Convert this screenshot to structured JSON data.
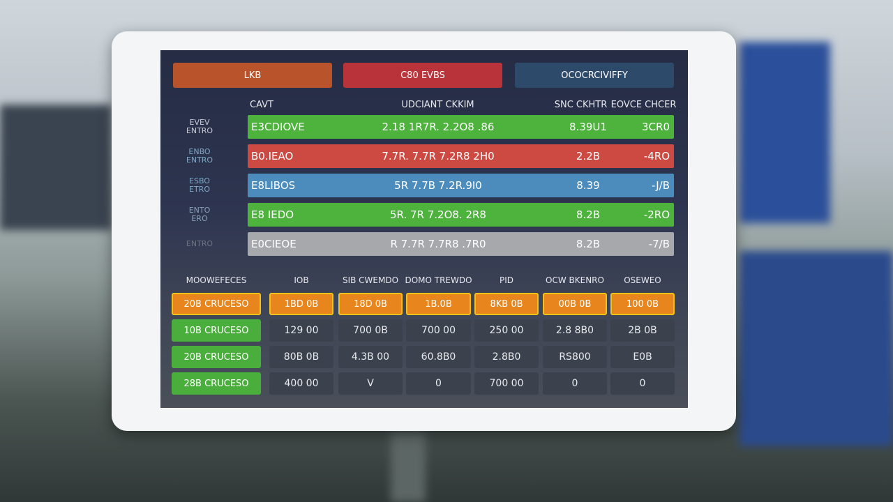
{
  "tabs": [
    "LKB",
    "C80 EVBS",
    "OCOCRCIVIFFY"
  ],
  "upper_table": {
    "headers": [
      "CAVT",
      "UDCIANT CKKIM",
      "SNC CKHTR",
      "EOVCE CHCER"
    ],
    "rows": [
      {
        "label": "EVEV ENTRO",
        "name": "E3CDIOVE",
        "detail": "2.18 1R7R. 2.2O8 .86",
        "value": "8.39U1",
        "change": "3CR0"
      },
      {
        "label": "ENBO ENTRO",
        "name": "B0.IEAO",
        "detail": "7.7R. 7.7R 7.2R8 2H0",
        "value": "2.2B",
        "change": "-4RO"
      },
      {
        "label": "ESBO ETRO",
        "name": "E8LIBOS",
        "detail": "5R 7.7B 7.2R.9I0",
        "value": "8.39",
        "change": "-J/B"
      },
      {
        "label": "ENTO ERO",
        "name": "E8 IEDO",
        "detail": "5R. 7R 7.2O8. 2R8",
        "value": "8.2B",
        "change": "-2RO"
      },
      {
        "label": "ENTRO",
        "name": "E0CIEOE",
        "detail": "R 7.7R 7.7R8 .7R0",
        "value": "8.2B",
        "change": "-7/B"
      }
    ]
  },
  "lower_table": {
    "headers": [
      "MOOWEFECES",
      "IOB",
      "SIB CWEMDO",
      "DOMO TREWDO",
      "PID",
      "OCW BKENRO",
      "OSEWEO"
    ],
    "rows": [
      [
        "20B CRUCESO",
        "1BD 0B",
        "18D 0B",
        "1B.0B",
        "8KB 0B",
        "00B 0B",
        "100 0B"
      ],
      [
        "10B CRUCESO",
        "129 00",
        "700 0B",
        "700 00",
        "250 00",
        "2.8 8B0",
        "2B 0B"
      ],
      [
        "20B CRUCESO",
        "80B 0B",
        "4.3B 00",
        "60.8B0",
        "2.8B0",
        "RS800",
        "E0B"
      ],
      [
        "28B CRUCESO",
        "400 00",
        "V",
        "0",
        "700 00",
        "0",
        "0"
      ]
    ]
  }
}
